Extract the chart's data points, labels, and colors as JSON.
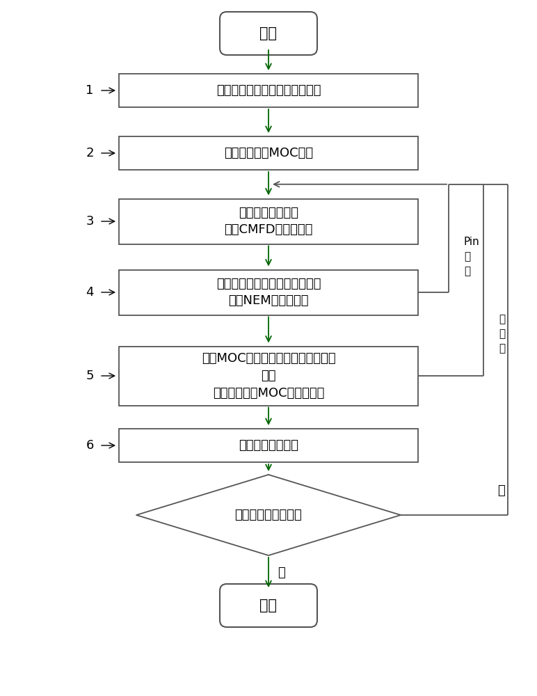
{
  "bg_color": "#ffffff",
  "arrow_color": "#006400",
  "box_border_color": "#555555",
  "box_bg_color": "#ffffff",
  "text_color": "#000000",
  "font_size": 13,
  "small_font_size": 11,
  "start_end_text": [
    "开始",
    "结束"
  ],
  "boxes": [
    {
      "label": "描述几何，分区，材料，初始化",
      "num": "1"
    },
    {
      "label": "生成各层二维MOC矩阵",
      "num": "2"
    },
    {
      "label": "更新三维粗网参数\n三维CMFD特征值计算",
      "num": "3"
    },
    {
      "label": "更新结块展开系数及径向泄漏项\n一维NEM固定源计算",
      "num": "4"
    },
    {
      "label": "矩阵MOC细区通量修正及轴向泄漏项\n更新\n径向二维矩阵MOC固定源计算",
      "num": "5"
    },
    {
      "label": "更新三维粗网参数",
      "num": "6"
    }
  ],
  "diamond_text": "通量特征值是否收敛",
  "yes_label": "是",
  "no_label": "否",
  "pin_label": "Pin\n循\n环",
  "layer_label": "层\n循\n环"
}
